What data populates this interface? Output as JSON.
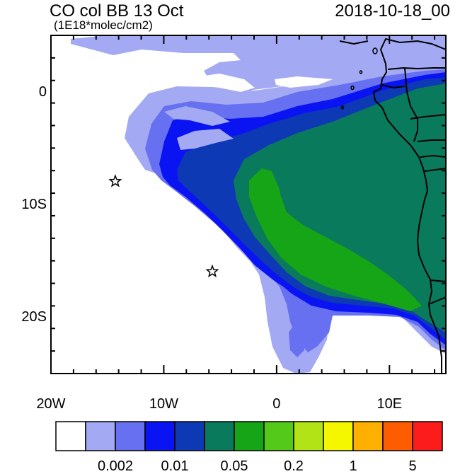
{
  "header": {
    "title_left": "CO col BB 13 Oct",
    "subtitle_left": "(1E18*molec/cm2)",
    "title_right": "2018-10-18_00"
  },
  "map": {
    "lon_range": [
      -20,
      15
    ],
    "lat_range": [
      -25,
      5
    ],
    "lat_tick_labels": [
      {
        "lat": 0,
        "text": "0"
      },
      {
        "lat": -10,
        "text": "10S"
      },
      {
        "lat": -20,
        "text": "20S"
      }
    ],
    "lon_tick_labels": [
      {
        "lon": -20,
        "text": "20W"
      },
      {
        "lon": -10,
        "text": "10W"
      },
      {
        "lon": 0,
        "text": "0"
      },
      {
        "lon": 10,
        "text": "10E"
      }
    ],
    "stations": [
      {
        "lon": -14.3,
        "lat": -7.95
      },
      {
        "lon": -5.7,
        "lat": -15.95
      }
    ]
  },
  "colorbar": {
    "colors": [
      "#ffffff",
      "#a3a9f3",
      "#6670f0",
      "#0a13f2",
      "#0d39b5",
      "#0a7a5c",
      "#16a516",
      "#54c91a",
      "#b2e316",
      "#f5f700",
      "#fdb000",
      "#fd5c00",
      "#fd1c1c"
    ],
    "tick_labels": [
      {
        "boundary": 2,
        "text": "0.002"
      },
      {
        "boundary": 4,
        "text": "0.01"
      },
      {
        "boundary": 6,
        "text": "0.05"
      },
      {
        "boundary": 8,
        "text": "0.2"
      },
      {
        "boundary": 10,
        "text": "1"
      },
      {
        "boundary": 12,
        "text": "5"
      }
    ]
  }
}
